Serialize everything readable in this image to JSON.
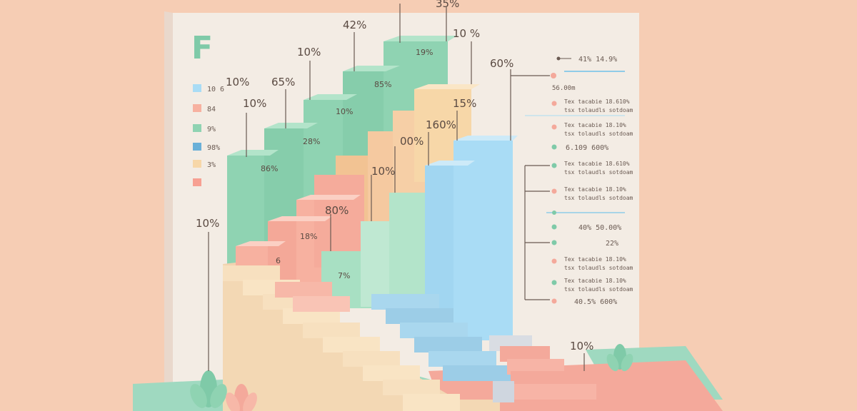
{
  "title_letter": "F",
  "colors": {
    "background": "#f6cdb4",
    "panel": "#f3ece4",
    "mint": "#8fd3b2",
    "peach": "#f7b1a0",
    "sand": "#f7d7a8",
    "sky": "#a9dcf5",
    "ground_green": "#9fd9c0",
    "ground_pink": "#f4a99b"
  },
  "legend": [
    {
      "color": "#a9dcf5",
      "text": "10 6"
    },
    {
      "color": "#f7b1a0",
      "text": "84"
    },
    {
      "color": "#8fd3b2",
      "text": "9%"
    },
    {
      "color": "#6ab0d8",
      "text": "98%"
    },
    {
      "color": "#f7d7a8",
      "text": "3%"
    },
    {
      "color": "#f7a092",
      "text": ""
    }
  ],
  "labels": {
    "p35": "35%",
    "p42": "42%",
    "p10a": "10 %",
    "p10b": "10%",
    "p60": "60%",
    "p10c": "10%",
    "p65": "65%",
    "p10d": "10%",
    "p15": "15%",
    "p160": "160%",
    "p00": "00%",
    "p101": "10%",
    "p80": "80%",
    "p10e": "10%",
    "p10f": "10%",
    "in19": "19%",
    "in85": "85%",
    "in10": "10%",
    "in28": "28%",
    "in86": "86%",
    "in18": "18%",
    "in6": "6",
    "in7": "7%"
  },
  "right_annotations": [
    {
      "text": "41% 14.9%",
      "type": "value"
    },
    {
      "text": "56.00m",
      "type": "sub"
    },
    {
      "text": "Tex tacabie 18.610%",
      "type": "pair",
      "line2": "tsx tolaudls sotdoam"
    },
    {
      "text": "Tex tacabie 18.10%",
      "type": "pair",
      "line2": "tsx tolaudls sotdoam"
    },
    {
      "text": "6.109 600%",
      "type": "value"
    },
    {
      "text": "Tex tacabie 18.610%",
      "type": "pair",
      "line2": "tsx tolaudls sotdoam"
    },
    {
      "text": "Tex tacabie 18.10%",
      "type": "pair",
      "line2": "tsx tolaudls sotdoam"
    },
    {
      "text": "40% 50.00%",
      "type": "value"
    },
    {
      "text": "22%",
      "type": "value"
    },
    {
      "text": "Tex tacabie 18.10%",
      "type": "pair",
      "line2": "tsx tolaudls sotdoam"
    },
    {
      "text": "Tex tacabie 18.10%",
      "type": "pair",
      "line2": "tsx tolaudls sotdoam"
    },
    {
      "text": "40.5% 600%",
      "type": "value"
    }
  ]
}
